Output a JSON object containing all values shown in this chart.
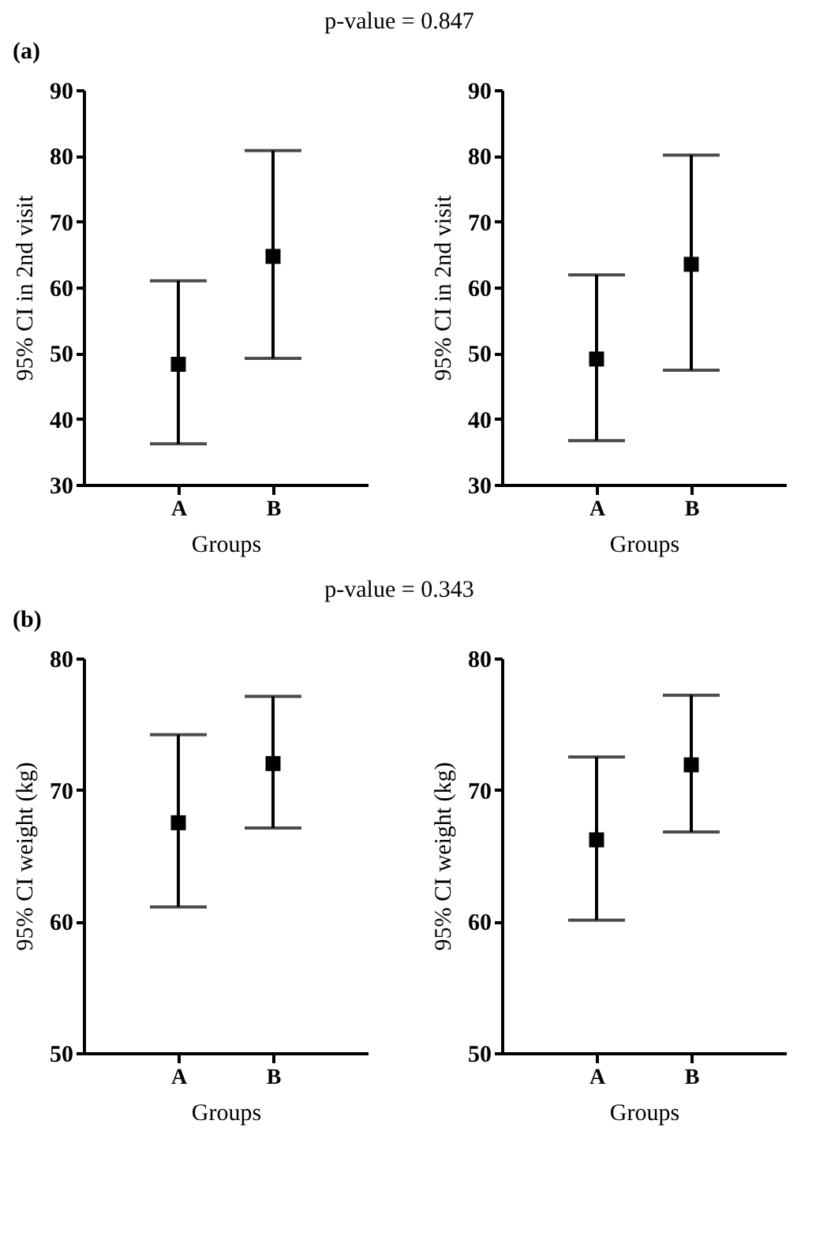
{
  "chart_data": [
    {
      "type": "scatter",
      "title": "(a)",
      "annotations": [
        "p-value = 0.847"
      ],
      "categories": [
        "A",
        "B"
      ],
      "xlabel": "Groups",
      "ylabel": "95% CI in 2nd visit",
      "ylim": [
        30,
        90
      ],
      "yticks": [
        30,
        40,
        50,
        60,
        70,
        80,
        90
      ],
      "marker": "square",
      "series": [
        {
          "color": "#000000",
          "values": [
            48.3,
            64.7
          ],
          "errors": [
            [
              36.2,
              61.0
            ],
            [
              49.2,
              80.8
            ]
          ]
        }
      ]
    },
    {
      "type": "scatter",
      "categories": [
        "A",
        "B"
      ],
      "xlabel": "Groups",
      "ylabel": "95% CI in 2nd visit",
      "ylim": [
        30,
        90
      ],
      "yticks": [
        30,
        40,
        50,
        60,
        70,
        80,
        90
      ],
      "marker": "square",
      "series": [
        {
          "color": "#000000",
          "values": [
            49.1,
            63.5
          ],
          "errors": [
            [
              36.7,
              61.9
            ],
            [
              47.4,
              80.1
            ]
          ]
        }
      ]
    },
    {
      "type": "scatter",
      "title": "(b)",
      "annotations": [
        "p-value = 0.343"
      ],
      "categories": [
        "A",
        "B"
      ],
      "xlabel": "Groups",
      "ylabel": "95% CI weight (kg)",
      "ylim": [
        50,
        80
      ],
      "yticks": [
        50,
        60,
        70,
        80
      ],
      "marker": "square",
      "series": [
        {
          "color": "#000000",
          "values": [
            67.5,
            72.0
          ],
          "errors": [
            [
              61.1,
              74.2
            ],
            [
              67.1,
              77.1
            ]
          ]
        }
      ]
    },
    {
      "type": "scatter",
      "categories": [
        "A",
        "B"
      ],
      "xlabel": "Groups",
      "ylabel": "95% CI weight (kg)",
      "ylim": [
        50,
        80
      ],
      "yticks": [
        50,
        60,
        70,
        80
      ],
      "marker": "square",
      "series": [
        {
          "color": "#000000",
          "values": [
            66.2,
            71.9
          ],
          "errors": [
            [
              60.1,
              72.5
            ],
            [
              66.8,
              77.2
            ]
          ]
        }
      ]
    }
  ]
}
